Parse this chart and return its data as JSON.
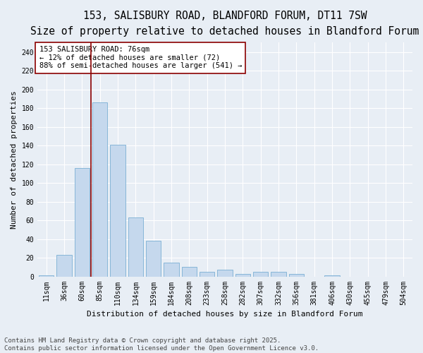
{
  "title_line1": "153, SALISBURY ROAD, BLANDFORD FORUM, DT11 7SW",
  "title_line2": "Size of property relative to detached houses in Blandford Forum",
  "xlabel": "Distribution of detached houses by size in Blandford Forum",
  "ylabel": "Number of detached properties",
  "categories": [
    "11sqm",
    "36sqm",
    "60sqm",
    "85sqm",
    "110sqm",
    "134sqm",
    "159sqm",
    "184sqm",
    "208sqm",
    "233sqm",
    "258sqm",
    "282sqm",
    "307sqm",
    "332sqm",
    "356sqm",
    "381sqm",
    "406sqm",
    "430sqm",
    "455sqm",
    "479sqm",
    "504sqm"
  ],
  "values": [
    1,
    23,
    116,
    186,
    141,
    63,
    38,
    15,
    10,
    5,
    7,
    3,
    5,
    5,
    3,
    0,
    1,
    0,
    0,
    0,
    0
  ],
  "bar_color": "#c5d8ed",
  "bar_edge_color": "#7bafd4",
  "bg_color": "#e8eef5",
  "grid_color": "#ffffff",
  "vline_x": 2.5,
  "vline_color": "#8b0000",
  "annotation_text": "153 SALISBURY ROAD: 76sqm\n← 12% of detached houses are smaller (72)\n88% of semi-detached houses are larger (541) →",
  "annotation_box_color": "#ffffff",
  "annotation_box_edge": "#8b0000",
  "footer_line1": "Contains HM Land Registry data © Crown copyright and database right 2025.",
  "footer_line2": "Contains public sector information licensed under the Open Government Licence v3.0.",
  "ylim": [
    0,
    250
  ],
  "yticks": [
    0,
    20,
    40,
    60,
    80,
    100,
    120,
    140,
    160,
    180,
    200,
    220,
    240
  ],
  "title_fontsize": 10.5,
  "subtitle_fontsize": 9.5,
  "axis_label_fontsize": 8,
  "tick_fontsize": 7,
  "annotation_fontsize": 7.5,
  "footer_fontsize": 6.5
}
